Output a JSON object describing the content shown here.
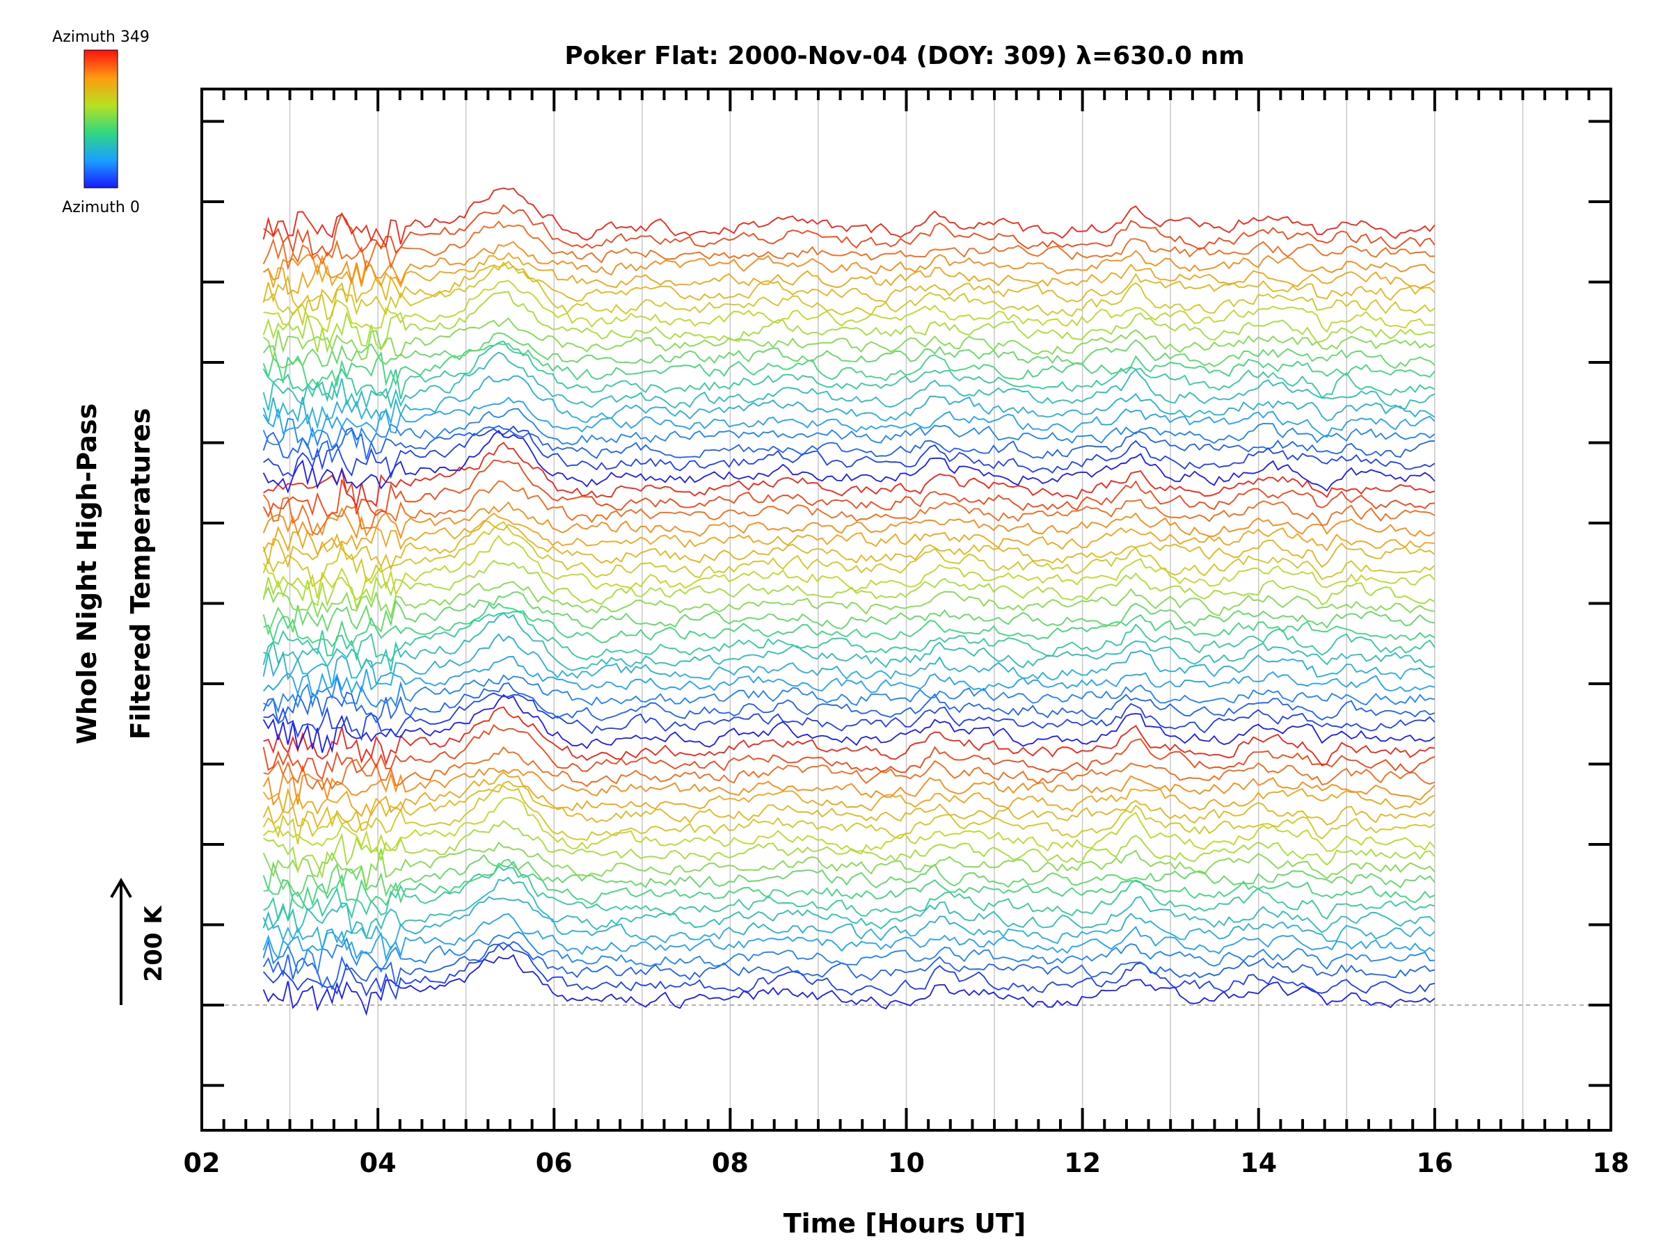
{
  "chart_data": {
    "type": "line",
    "title": "Poker Flat: 2000-Nov-04 (DOY: 309) λ=630.0 nm",
    "xlabel": "Time [Hours UT]",
    "ylabel_line1": "Whole Night High-Pass",
    "ylabel_line2": "Filtered Temperatures",
    "xlim": [
      2,
      18
    ],
    "x_tick_labels": [
      "02",
      "04",
      "06",
      "08",
      "10",
      "12",
      "14",
      "16",
      "18"
    ],
    "x_major_step_hours": 2,
    "x_minor_step_hours": 0.25,
    "x_grid_lines_every_hours": 1,
    "data_time_range_hours": [
      2.7,
      16.0
    ],
    "scale_bar": {
      "label": "200 K",
      "value_kelvin": 200
    },
    "colorbar": {
      "top_label": "Azimuth 349",
      "bottom_label": "Azimuth 0",
      "range": [
        0,
        349
      ]
    },
    "colors": {
      "low": "#1818ff",
      "mid": "#30d870",
      "high": "#ff1010",
      "grid": "#c8c8c8",
      "baseline": "#999999"
    },
    "series_summary": {
      "stacked": true,
      "groups": 3,
      "traces_per_group": 20,
      "azimuth_step": 18,
      "note_on_offsets": "each trace is vertically offset; vertical scale shown by arrow"
    }
  }
}
